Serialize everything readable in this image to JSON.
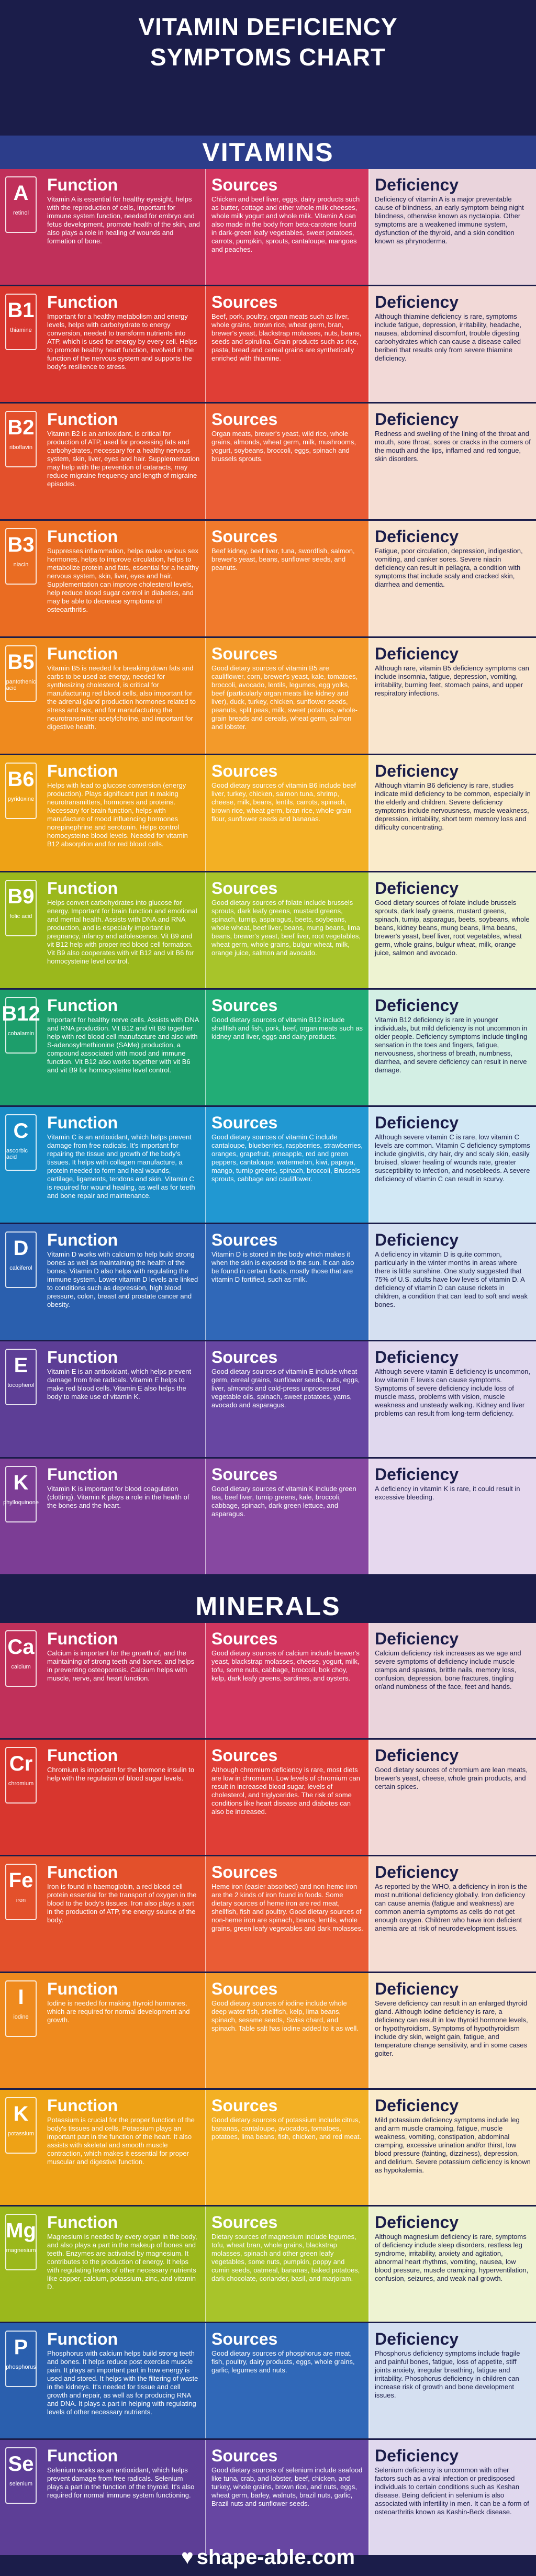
{
  "title_line1": "VITAMIN DEFICIENCY",
  "title_line2": "SYMPTOMS CHART",
  "vitamins_heading": "VITAMINS",
  "minerals_heading": "MINERALS",
  "col_function": "Function",
  "col_sources": "Sources",
  "col_deficiency": "Deficiency",
  "footer": "shape-able.com",
  "vitamins": [
    {
      "glyph": "A",
      "name": "retinol",
      "colors": [
        "#c0305a",
        "#d2365f",
        "#ead4dc"
      ],
      "function": "Vitamin A is essential for healthy eyesight, helps with the reproduction of cells, important for immune system function, needed for embryo and fetus development, promote health of the skin, and also plays a role in healing of wounds and formation of bone.",
      "sources": "Chicken and beef liver, eggs, dairy products such as butter, cottage and other whole milk cheeses, whole milk yogurt and whole milk. Vitamin A can also made in the body from beta-carotene found in dark-green leafy vegetables, sweet potatoes, carrots, pumpkin, sprouts, cantaloupe, mangoes and peaches.",
      "deficiency": "Deficiency of vitamin A is a major preventable cause of blindness, an early symptom being night blindness, otherwise known as nyctalopia. Other symptoms are a weakened immune system, dysfunction of the thyroid, and a skin condition known as phrynoderma."
    },
    {
      "glyph": "B1",
      "name": "thiamine",
      "colors": [
        "#d8362e",
        "#e03e36",
        "#f2d9d7"
      ],
      "function": "Important for a healthy metabolism and energy levels, helps with carbohydrate to energy conversion, needed to transform nutrients into ATP, which is used for energy by every cell. Helps to promote healthy heart function, involved in the function of the nervous system and supports the body's resilience to stress.",
      "sources": "Beef, pork, poultry, organ meats such as liver, whole grains, brown rice, wheat germ, bran, brewer's yeast, blackstrap molasses, nuts, beans, seeds and spirulina. Grain products such as rice, pasta, bread and cereal grains are synthetically enriched with thiamine.",
      "deficiency": "Although thiamine deficiency is rare, symptoms include fatigue, depression, irritability, headache, nausea, abdominal discomfort, trouble digesting carbohydrates which can cause a disease called beriberi that results only from severe thiamine deficiency."
    },
    {
      "glyph": "B2",
      "name": "riboflavin",
      "colors": [
        "#e3502b",
        "#ea5c35",
        "#f5ddd3"
      ],
      "function": "Vitamin B2 is an antioxidant, is critical for production of ATP, used for processing fats and carbohydrates, necessary for a healthy nervous system, skin, liver, eyes and hair. Supplementation may help with the prevention of cataracts, may reduce migraine frequency and length of migraine episodes.",
      "sources": "Organ meats, brewer's yeast, wild rice, whole grains, almonds, wheat germ, milk, mushrooms, yogurt, soybeans, broccoli, eggs, spinach and brussels sprouts.",
      "deficiency": "Redness and swelling of the lining of the throat and mouth, sore throat, sores or cracks in the corners of the mouth and the lips, inflamed and red tongue, skin disorders."
    },
    {
      "glyph": "B3",
      "name": "niacin",
      "colors": [
        "#ea6c22",
        "#f07a2c",
        "#f8e2d0"
      ],
      "function": "Suppresses inflammation, helps make various sex hormones, helps to improve circulation, helps to metabolize protein and fats, essential for a healthy nervous system, skin, liver, eyes and hair. Supplementation can improve cholesterol levels, help reduce blood sugar control in diabetics, and may be able to decrease symptoms of osteoarthritis.",
      "sources": "Beef kidney, beef liver, tuna, swordfish, salmon, brewer's yeast, beans, sunflower seeds, and peanuts.",
      "deficiency": "Fatigue, poor circulation, depression, indigestion, vomiting, and canker sores. Severe niacin deficiency can result in pellagra, a condition with symptoms that include scaly and cracked skin, diarrhea and dementia."
    },
    {
      "glyph": "B5",
      "name": "pantothenic acid",
      "colors": [
        "#ef8a1e",
        "#f39a2a",
        "#f9e6cf"
      ],
      "function": "Vitamin B5 is needed for breaking down fats and carbs to be used as energy, needed for synthesizing cholesterol, is critical for manufacturing red blood cells, also important for the adrenal gland production hormones related to stress and sex, and for manufacturing the neurotransmitter acetylcholine, and important for digestive health.",
      "sources": "Good dietary sources of vitamin B5 are cauliflower, corn, brewer's yeast, kale, tomatoes, broccoli, avocado, lentils, legumes, egg yolks, beef (particularly organ meats like kidney and liver), duck, turkey, chicken, sunflower seeds, peanuts, split peas, milk, sweet potatoes, whole-grain breads and cereals, wheat germ, salmon and lobster.",
      "deficiency": "Although rare, vitamin B5 deficiency symptoms can include insomnia, fatigue, depression, vomiting, irritability, burning feet, stomach pains, and upper respiratory infections."
    },
    {
      "glyph": "B6",
      "name": "pyridoxine",
      "colors": [
        "#eea216",
        "#f3b024",
        "#faebcb"
      ],
      "function": "Helps with lead to glucose conversion (energy production). Plays significant part in making neurotransmitters, hormones and proteins. Necessary for brain function, helps with manufacture of mood influencing hormones norepinephrine and serotonin. Helps control homocysteine blood levels. Needed for vitamin B12 absorption and for red blood cells.",
      "sources": "Good dietary sources of vitamin B6 include beef liver, turkey, chicken, salmon tuna, shrimp, cheese, milk, beans, lentils, carrots, spinach, brown rice, wheat germ, bran rice, whole-grain flour, sunflower seeds and bananas.",
      "deficiency": "Although vitamin B6 deficiency is rare, studies indicate mild deficiency to be common, especially in the elderly and children. Severe deficiency symptoms include nervousness, muscle weakness, depression, irritability, short term memory loss and difficulty concentrating."
    },
    {
      "glyph": "B9",
      "name": "folic acid",
      "colors": [
        "#9bb81c",
        "#a8c42a",
        "#eef3d2"
      ],
      "function": "Helps convert carbohydrates into glucose for energy. Important for brain function and emotional and mental health. Assists with DNA and RNA production, and is especially important in pregnancy, infancy and adolescence. Vit B9 and vit B12 help with proper red blood cell formation. Vit B9 also cooperates with vit B12 and vit B6 for homocysteine level control.",
      "sources": "Good dietary sources of folate include brussels sprouts, dark leafy greens, mustard greens, spinach, turnip, asparagus, beets, soybeans, whole wheat, beef liver, beans, mung beans, lima beans, brewer's yeast, beef liver, root vegetables, wheat germ, whole grains, bulgur wheat, milk, orange juice, salmon and avocado.",
      "deficiency": "Good dietary sources of folate include brussels sprouts, dark leafy greens, mustard greens, spinach, turnip, asparagus, beets, soybeans, whole beans, kidney beans, mung beans, lima beans, brewer's yeast, beef liver, root vegetables, wheat germ, whole grains, bulgur wheat, milk, orange juice, salmon and avocado."
    },
    {
      "glyph": "B12",
      "name": "cobalamin",
      "colors": [
        "#1d9e6b",
        "#22ad76",
        "#d3efe4"
      ],
      "function": "Important for healthy nerve cells. Assists with DNA and RNA production. Vit B12 and vit B9 together help with red blood cell manufacture and also with S-adenosylmethionine (SAMe) production, a compound associated with mood and immune function. Vit B12 also works together with vit B6 and vit B9 for homocysteine level control.",
      "sources": "Good dietary sources of vitamin B12 include shellfish and fish, pork, beef, organ meats such as kidney and liver, eggs and dairy products.",
      "deficiency": "Vitamin B12 deficiency is rare in younger individuals, but mild deficiency is not uncommon in older people. Deficiency symptoms include tingling sensation in the toes and fingers, fatigue, nervousness, shortness of breath, numbness, diarrhea, and severe deficiency can result in nerve damage."
    },
    {
      "glyph": "C",
      "name": "ascorbic acid",
      "colors": [
        "#1a8cc6",
        "#2198d2",
        "#d2e8f5"
      ],
      "function": "Vitamin C is an antioxidant, which helps prevent damage from free radicals. It's important for repairing the tissue and growth of the body's tissues. It helps with collagen manufacture, a protein needed to form and heal wounds, cartilage, ligaments, tendons and skin. Vitamin C is required for wound healing, as well as for teeth and bone repair and maintenance.",
      "sources": "Good dietary sources of vitamin C include cantaloupe, blueberries, raspberries, strawberries, oranges, grapefruit, pineapple, red and green peppers, cantaloupe, watermelon, kiwi, papaya, mango, turnip greens, spinach, broccoli, Brussels sprouts, cabbage and cauliflower.",
      "deficiency": "Although severe vitamin C is rare, low vitamin C levels are common. Vitamin C deficiency symptoms include gingivitis, dry hair, dry and scaly skin, easily bruised, slower healing of wounds rate, greater susceptibility to infection, and nosebleeds. A severe deficiency of vitamin C can result in scurvy."
    },
    {
      "glyph": "D",
      "name": "calciferol",
      "colors": [
        "#2a5fae",
        "#3068b8",
        "#d5e0f1"
      ],
      "function": "Vitamin D works with calcium to help build strong bones as well as maintaining the health of the bones. Vitamin D also helps with regulating the immune system. Lower vitamin D levels are linked to conditions such as depression, high blood pressure, colon, breast and prostate cancer and obesity.",
      "sources": "Vitamin D is stored in the body which makes it when the skin is exposed to the sun. It can also be found in certain foods, mostly those that are vitamin D fortified, such as milk.",
      "deficiency": "A deficiency in vitamin D is quite common, particularly in the winter months in areas where there is little sunshine. One study suggested that 75% of U.S. adults have low levels of vitamin D. A deficiency of vitamin D can cause rickets in children, a condition that can lead to soft and weak bones."
    },
    {
      "glyph": "E",
      "name": "tocopherol",
      "colors": [
        "#5d3e96",
        "#6746a2",
        "#e0d8ee"
      ],
      "function": "Vitamin E is an antioxidant, which helps prevent damage from free radicals. Vitamin E helps to make red blood cells. Vitamin E also helps the body to make use of vitamin K.",
      "sources": "Good dietary sources of vitamin E include wheat germ, cereal grains, sunflower seeds, nuts, eggs, liver, almonds and cold-press unprocessed vegetable oils, spinach, sweet potatoes, yams, avocado and asparagus.",
      "deficiency": "Although severe vitamin E deficiency is uncommon, low vitamin E levels can cause symptoms. Symptoms of severe deficiency include loss of muscle mass, problems with vision, muscle weakness and unsteady walking. Kidney and liver problems can result from long-term deficiency."
    },
    {
      "glyph": "K",
      "name": "phylloquinone",
      "colors": [
        "#7c3d95",
        "#8748a1",
        "#e6d8ee"
      ],
      "function": "Vitamin K is important for blood coagulation (clotting). Vitamin K plays a role in the health of the bones and the heart.",
      "sources": "Good dietary sources of vitamin K include green tea, beef liver, turnip greens, kale, broccoli, cabbage, spinach, dark green lettuce, and asparagus.",
      "deficiency": "A deficiency in vitamin K is rare, it could result in excessive bleeding."
    }
  ],
  "minerals": [
    {
      "glyph": "Ca",
      "name": "calcium",
      "colors": [
        "#c0305a",
        "#d2365f",
        "#ead4dc"
      ],
      "function": "Calcium is important for the growth of, and the maintaining of strong teeth and bones, and helps in preventing osteoporosis. Calcium helps with muscle, nerve, and heart function.",
      "sources": "Good dietary sources of calcium include brewer's yeast, blackstrap molasses, cheese, yogurt, milk, tofu, some nuts, cabbage, broccoli, bok choy, kelp, dark leafy greens, sardines, and oysters.",
      "deficiency": "Calcium deficiency risk increases as we age and severe symptoms of deficiency include muscle cramps and spasms, brittle nails, memory loss, confusion, depression, bone fractures, tingling or/and numbness of the face, feet and hands."
    },
    {
      "glyph": "Cr",
      "name": "chromium",
      "colors": [
        "#d8362e",
        "#e03e36",
        "#f2d9d7"
      ],
      "function": "Chromium is important for the hormone insulin to help with the regulation of blood sugar levels.",
      "sources": "Although chromium deficiency is rare, most diets are low in chromium. Low levels of chromium can result in increased blood sugar, levels of cholesterol, and triglycerides. The risk of some conditions like heart disease and diabetes can also be increased.",
      "deficiency": "Good dietary sources of chromium are lean meats, brewer's yeast, cheese, whole grain products, and certain spices."
    },
    {
      "glyph": "Fe",
      "name": "iron",
      "colors": [
        "#e3502b",
        "#ea5c35",
        "#f5ddd3"
      ],
      "function": "Iron is found in haemoglobin, a red blood cell protein essential for the transport of oxygen in the blood to the body's tissues. Iron also plays a part in the production of ATP, the energy source of the body.",
      "sources": "Heme iron (easier absorbed) and non-heme iron are the 2 kinds of iron found in foods. Some dietary sources of heme iron are red meat, shellfish, fish and poultry. Good dietary sources of non-heme iron are spinach, beans, lentils, whole grains, green leafy vegetables and dark molasses.",
      "deficiency": "As reported by the WHO, a deficiency in iron is the most nutritional deficiency globally. Iron deficiency can cause anemia (fatigue and weakness) are common anemia symptoms as cells do not get enough oxygen. Children who have iron deficient anemia are at risk of neurodevelopment issues."
    },
    {
      "glyph": "I",
      "name": "iodine",
      "colors": [
        "#ef8a1e",
        "#f39a2a",
        "#f9e6cf"
      ],
      "function": "Iodine is needed for making thyroid hormones, which are required for normal development and growth.",
      "sources": "Good dietary sources of iodine include whole deep water fish, shellfish, kelp, lima beans, spinach, sesame seeds, Swiss chard, and spinach. Table salt has iodine added to it as well.",
      "deficiency": "Severe deficiency can result in an enlarged thyroid gland. Although iodine deficiency is rare, a deficiency can result in low thyroid hormone levels, or hypothyroidism. Symptoms of hypothyroidism include dry skin, weight gain, fatigue, and temperature change sensitivity, and in some cases goiter."
    },
    {
      "glyph": "K",
      "name": "potassium",
      "colors": [
        "#eea216",
        "#f3b024",
        "#faebcb"
      ],
      "function": "Potassium is crucial for the proper function of the body's tissues and cells. Potassium plays an important part in the function of the heart. It also assists with skeletal and smooth muscle contraction, which makes it essential for proper muscular and digestive function.",
      "sources": "Good dietary sources of potassium include citrus, bananas, cantaloupe, avocados, tomatoes, potatoes, lima beans, fish, chicken, and red meat.",
      "deficiency": "Mild potassium deficiency symptoms include leg and arm muscle cramping, fatigue, muscle weakness, vomiting, constipation, abdominal cramping, excessive urination and/or thirst, low blood pressure (fainting, dizziness), depression, and delirium. Severe potassium deficiency is known as hypokalemia."
    },
    {
      "glyph": "Mg",
      "name": "magnesium",
      "colors": [
        "#9bb81c",
        "#a8c42a",
        "#eef3d2"
      ],
      "function": "Magnesium is needed by every organ in the body, and also plays a part in the makeup of bones and teeth. Enzymes are activated by magnesium. It contributes to the production of energy. It helps with regulating levels of other necessary nutrients like copper, calcium, potassium, zinc, and vitamin D.",
      "sources": "Dietary sources of magnesium include legumes, tofu, wheat bran, whole grains, blackstrap molasses, spinach and other green leafy vegetables, some nuts, pumpkin, poppy and cumin seeds, oatmeal, bananas, baked potatoes, dark chocolate, coriander, basil, and marjoram.",
      "deficiency": "Although magnesium deficiency is rare, symptoms of deficiency include sleep disorders, restless leg syndrome, irritability, anxiety and agitation, abnormal heart rhythms, vomiting, nausea, low blood pressure, muscle cramping, hyperventilation, confusion, seizures, and weak nail growth."
    },
    {
      "glyph": "P",
      "name": "phosphorus",
      "colors": [
        "#2a5fae",
        "#3068b8",
        "#d5e0f1"
      ],
      "function": "Phosphorus with calcium helps build strong teeth and bones. It helps reduce post exercise muscle pain. It plays an important part in how energy is used and stored. It helps with the filtering of waste in the kidneys. It's needed for tissue and cell growth and repair, as well as for producing RNA and DNA. It plays a part in helping with regulating levels of other necessary nutrients.",
      "sources": "Good dietary sources of phosphorus are meat, fish, poultry, dairy products, eggs, whole grains, garlic, legumes and nuts.",
      "deficiency": "Phosphorus deficiency symptoms include fragile and painful bones, fatigue, loss of appetite, stiff joints anxiety, irregular breathing, fatigue and irritability. Phosphorus deficiency in children can increase risk of growth and bone development issues."
    },
    {
      "glyph": "Se",
      "name": "selenium",
      "colors": [
        "#5d3e96",
        "#6746a2",
        "#e0d8ee"
      ],
      "function": "Selenium works as an antioxidant, which helps prevent damage from free radicals. Selenium plays a part in the function of the thyroid. It's also required for normal immune system functioning.",
      "sources": "Good dietary sources of selenium include seafood like tuna, crab, and lobster, beef, chicken, and turkey, whole grains, brown rice, and nuts, eggs, wheat germ, barley, walnuts, brazil nuts, garlic, Brazil nuts and sunflower seeds.",
      "deficiency": "Selenium deficiency is uncommon with other factors such as a viral infection or predisposed individuals to certain conditions such as Keshan disease. Being deficient in selenium is also associated with infertility in men. It can be a form of osteoarthritis known as Kashin-Beck disease."
    }
  ]
}
